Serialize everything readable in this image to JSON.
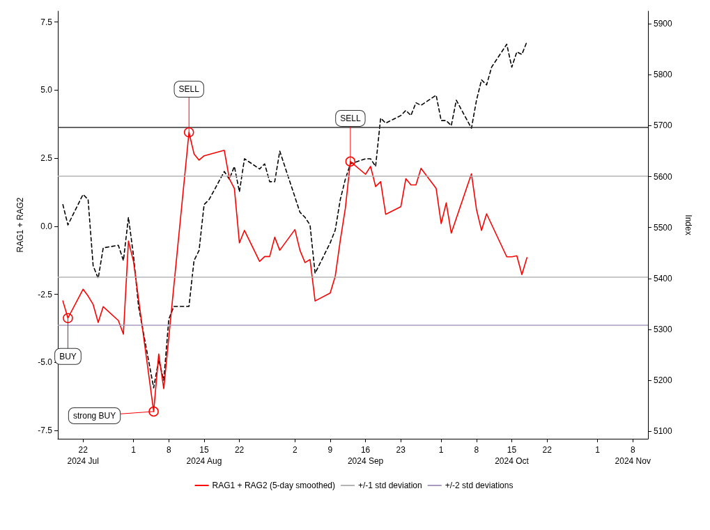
{
  "chart_data": {
    "type": "line",
    "ylabel": "RAG1 + RAG2",
    "y2label": "Index",
    "xlim": [
      "2024-07-17",
      "2024-11-11"
    ],
    "xticks": [
      {
        "value": "2024-07-22",
        "label": "22\n2024 Jul"
      },
      {
        "value": "2024-08-01",
        "label": "1"
      },
      {
        "value": "2024-08-08",
        "label": "8"
      },
      {
        "value": "2024-08-15",
        "label": "15\n2024 Aug"
      },
      {
        "value": "2024-08-22",
        "label": "22"
      },
      {
        "value": "2024-09-02",
        "label": "2"
      },
      {
        "value": "2024-09-09",
        "label": "9"
      },
      {
        "value": "2024-09-16",
        "label": "16\n2024 Sep"
      },
      {
        "value": "2024-09-23",
        "label": "23"
      },
      {
        "value": "2024-10-01",
        "label": "1"
      },
      {
        "value": "2024-10-08",
        "label": "8"
      },
      {
        "value": "2024-10-15",
        "label": "15\n2024 Oct"
      },
      {
        "value": "2024-10-22",
        "label": "22"
      },
      {
        "value": "2024-11-01",
        "label": "1"
      },
      {
        "value": "2024-11-08",
        "label": "8\n2024 Nov"
      }
    ],
    "ylim": [
      -7.8,
      7.9
    ],
    "yticks": [
      -7.5,
      {
        "value": -5,
        "label": "-5.0"
      },
      -2.5,
      {
        "value": 0,
        "label": "0.0"
      },
      2.5,
      {
        "value": 5,
        "label": "5.0"
      },
      7.5
    ],
    "y2lim": [
      5085,
      5925
    ],
    "y2ticks": [
      5100,
      5200,
      5300,
      5400,
      5500,
      5600,
      5700,
      5800,
      5900
    ],
    "grid": false,
    "legend": "bottom",
    "marker": "none",
    "series": [
      {
        "name": "RAG1 + RAG2 (5-day smoothed)",
        "color": "#ff0000",
        "line_style": "solid",
        "x": [
          "2024-07-18",
          "2024-07-19",
          "2024-07-22",
          "2024-07-23",
          "2024-07-24",
          "2024-07-25",
          "2024-07-26",
          "2024-07-29",
          "2024-07-30",
          "2024-07-31",
          "2024-08-01",
          "2024-08-05",
          "2024-08-06",
          "2024-08-07",
          "2024-08-12",
          "2024-08-13",
          "2024-08-14",
          "2024-08-15",
          "2024-08-19",
          "2024-08-20",
          "2024-08-21",
          "2024-08-22",
          "2024-08-23",
          "2024-08-26",
          "2024-08-27",
          "2024-08-28",
          "2024-08-29",
          "2024-08-30",
          "2024-09-02",
          "2024-09-03",
          "2024-09-04",
          "2024-09-05",
          "2024-09-06",
          "2024-09-09",
          "2024-09-10",
          "2024-09-11",
          "2024-09-12",
          "2024-09-13",
          "2024-09-16",
          "2024-09-17",
          "2024-09-18",
          "2024-09-19",
          "2024-09-20",
          "2024-09-23",
          "2024-09-24",
          "2024-09-25",
          "2024-09-26",
          "2024-09-27",
          "2024-09-30",
          "2024-10-01",
          "2024-10-02",
          "2024-10-03",
          "2024-10-07",
          "2024-10-08",
          "2024-10-09",
          "2024-10-10",
          "2024-10-14",
          "2024-10-15",
          "2024-10-16",
          "2024-10-17",
          "2024-10-18"
        ],
        "values": [
          -2.74,
          -3.37,
          -2.31,
          -2.56,
          -2.87,
          -3.53,
          -2.95,
          -3.46,
          -3.96,
          -0.54,
          -1.29,
          -6.8,
          -4.69,
          -5.96,
          3.45,
          2.66,
          2.43,
          2.59,
          2.79,
          1.75,
          1.39,
          -0.61,
          -0.15,
          -1.29,
          -1.11,
          -1.11,
          -0.4,
          -0.88,
          -0.12,
          -0.88,
          -1.33,
          -1.22,
          -2.74,
          -2.45,
          -1.83,
          -0.51,
          0.66,
          2.38,
          1.91,
          2.2,
          1.46,
          1.64,
          0.44,
          0.72,
          1.75,
          1.52,
          1.52,
          2.13,
          1.39,
          0.1,
          0.86,
          -0.25,
          1.93,
          0.62,
          -0.15,
          0.46,
          -1.12,
          -1.12,
          -1.08,
          -1.77,
          -1.15
        ]
      },
      {
        "color": "#000000",
        "line_style": "dashed",
        "axis": "y2",
        "x": [
          "2024-07-18",
          "2024-07-19",
          "2024-07-22",
          "2024-07-23",
          "2024-07-24",
          "2024-07-25",
          "2024-07-26",
          "2024-07-29",
          "2024-07-30",
          "2024-07-31",
          "2024-08-01",
          "2024-08-02",
          "2024-08-05",
          "2024-08-06",
          "2024-08-07",
          "2024-08-08",
          "2024-08-09",
          "2024-08-12",
          "2024-08-13",
          "2024-08-14",
          "2024-08-15",
          "2024-08-16",
          "2024-08-19",
          "2024-08-20",
          "2024-08-21",
          "2024-08-22",
          "2024-08-23",
          "2024-08-26",
          "2024-08-27",
          "2024-08-28",
          "2024-08-29",
          "2024-08-30",
          "2024-09-03",
          "2024-09-04",
          "2024-09-05",
          "2024-09-06",
          "2024-09-09",
          "2024-09-10",
          "2024-09-11",
          "2024-09-12",
          "2024-09-13",
          "2024-09-16",
          "2024-09-17",
          "2024-09-18",
          "2024-09-19",
          "2024-09-20",
          "2024-09-23",
          "2024-09-24",
          "2024-09-25",
          "2024-09-26",
          "2024-09-27",
          "2024-09-30",
          "2024-10-01",
          "2024-10-02",
          "2024-10-03",
          "2024-10-04",
          "2024-10-07",
          "2024-10-08",
          "2024-10-09",
          "2024-10-10",
          "2024-10-11",
          "2024-10-14",
          "2024-10-15",
          "2024-10-16",
          "2024-10-17",
          "2024-10-18"
        ],
        "values": [
          5545,
          5505,
          5565,
          5555,
          5425,
          5400,
          5460,
          5465,
          5435,
          5520,
          5445,
          5345,
          5185,
          5240,
          5200,
          5320,
          5345,
          5345,
          5435,
          5455,
          5545,
          5555,
          5610,
          5595,
          5620,
          5570,
          5635,
          5615,
          5625,
          5590,
          5590,
          5650,
          5530,
          5520,
          5505,
          5410,
          5470,
          5495,
          5555,
          5595,
          5625,
          5635,
          5635,
          5620,
          5715,
          5705,
          5720,
          5730,
          5720,
          5745,
          5740,
          5760,
          5710,
          5710,
          5700,
          5750,
          5695,
          5750,
          5790,
          5780,
          5815,
          5860,
          5815,
          5845,
          5840,
          5865
        ]
      }
    ],
    "ref_lines": [
      {
        "axis": "y",
        "value": 1.85,
        "label": "+/-1 std deviation",
        "color": "#b4b4b4"
      },
      {
        "axis": "y",
        "value": -1.85,
        "color": "#b4b4b4"
      },
      {
        "axis": "y",
        "value": -3.63,
        "label": "+/-2 std deviations",
        "color": "#a89bbf"
      },
      {
        "axis": "y",
        "value": 3.63,
        "color": "#333333"
      }
    ],
    "annotations": [
      {
        "text": "BUY",
        "x": "2024-07-19",
        "y": -3.37
      },
      {
        "text": "strong BUY",
        "x": "2024-08-05",
        "y": -6.8
      },
      {
        "text": "SELL",
        "x": "2024-08-12",
        "y": 3.45
      },
      {
        "text": "SELL",
        "x": "2024-09-13",
        "y": 2.38
      }
    ]
  }
}
